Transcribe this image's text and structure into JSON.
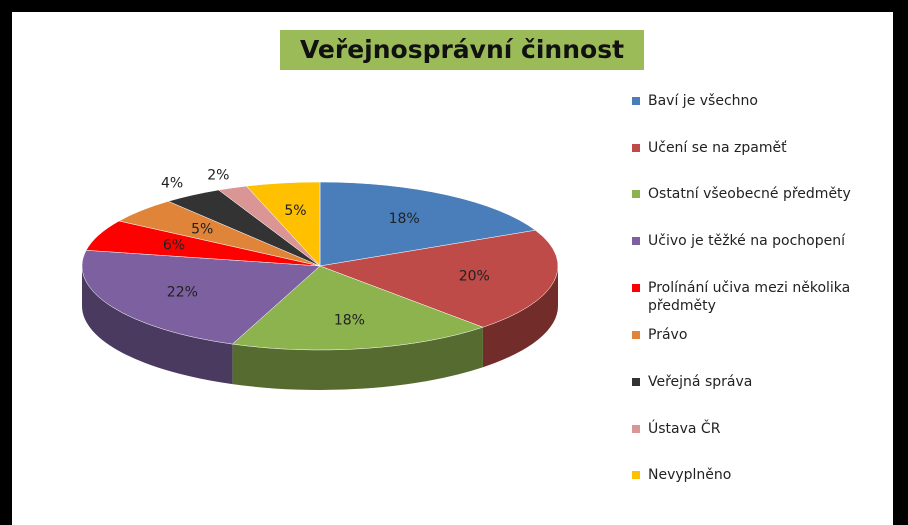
{
  "chart_data": {
    "type": "pie",
    "title": "Veřejnosprávní činnost",
    "categories": [
      "Baví je všechno",
      "Učení se na zpaměť",
      "Ostatní všeobecné předměty",
      "Učivo je těžké na pochopení",
      "Prolínání učiva mezi několika předměty",
      "Právo",
      "Veřejná správa",
      "Ústava ČR",
      "Nevyplněno"
    ],
    "values": [
      18,
      20,
      18,
      22,
      6,
      5,
      4,
      2,
      5
    ],
    "value_labels": [
      "18%",
      "20%",
      "18%",
      "22%",
      "6%",
      "5%",
      "4%",
      "2%",
      "5%"
    ],
    "colors": [
      "#4a7ebb",
      "#be4b48",
      "#8db34f",
      "#7d60a0",
      "#ff0000",
      "#e0843a",
      "#333333",
      "#d99694",
      "#ffc000"
    ],
    "legend": "right"
  }
}
